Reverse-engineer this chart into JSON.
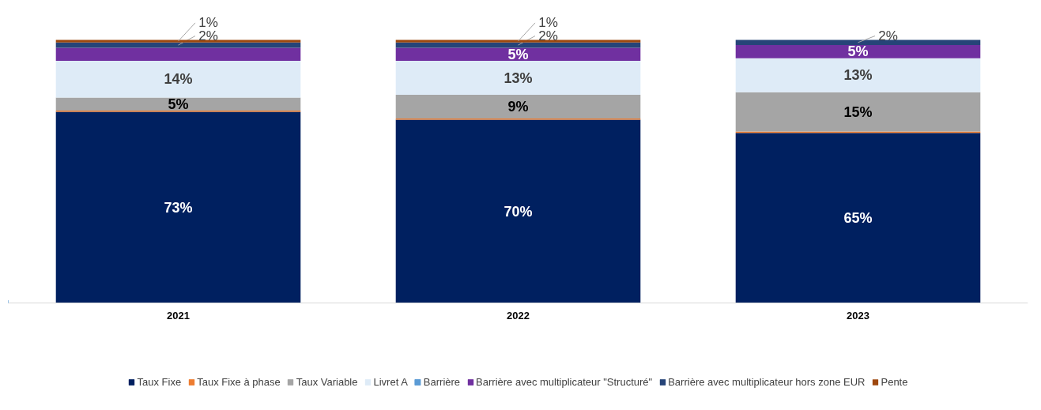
{
  "chart_data": {
    "type": "bar",
    "stacked": true,
    "categories": [
      "2021",
      "2022",
      "2023"
    ],
    "tick_labels": "x",
    "legend": "bottom",
    "series": [
      {
        "name": "Taux Fixe",
        "color": "#002060",
        "values": [
          73,
          70,
          65
        ],
        "value_labels": [
          "73%",
          "70%",
          "65%"
        ]
      },
      {
        "name": "Taux Fixe à phase",
        "color": "#ed7d31",
        "values": [
          0.5,
          0.5,
          0.5
        ],
        "value_labels": [
          null,
          null,
          null
        ]
      },
      {
        "name": "Taux Variable",
        "color": "#a5a5a5",
        "values": [
          5,
          9,
          15
        ],
        "value_labels": [
          "5%",
          "9%",
          "15%"
        ]
      },
      {
        "name": "Livret A",
        "color": "#deebf7",
        "values": [
          14,
          13,
          13
        ],
        "value_labels": [
          "14%",
          "13%",
          "13%"
        ]
      },
      {
        "name": "Barrière",
        "color": "#5b9bd5",
        "values": [
          null,
          null,
          null
        ]
      },
      {
        "name": "Barrière avec multiplicateur \"Structuré\"",
        "color": "#7030a0",
        "values": [
          5,
          5,
          5
        ],
        "value_labels": [
          null,
          "5%",
          "5%"
        ]
      },
      {
        "name": "Barrière avec multiplicateur hors zone EUR",
        "color": "#264478",
        "values": [
          2,
          2,
          2
        ],
        "value_labels": [
          "2%",
          "2%",
          "2%"
        ]
      },
      {
        "name": "Pente",
        "color": "#9e480e",
        "values": [
          1,
          1,
          null
        ],
        "value_labels": [
          "1%",
          "1%",
          null
        ]
      }
    ]
  }
}
